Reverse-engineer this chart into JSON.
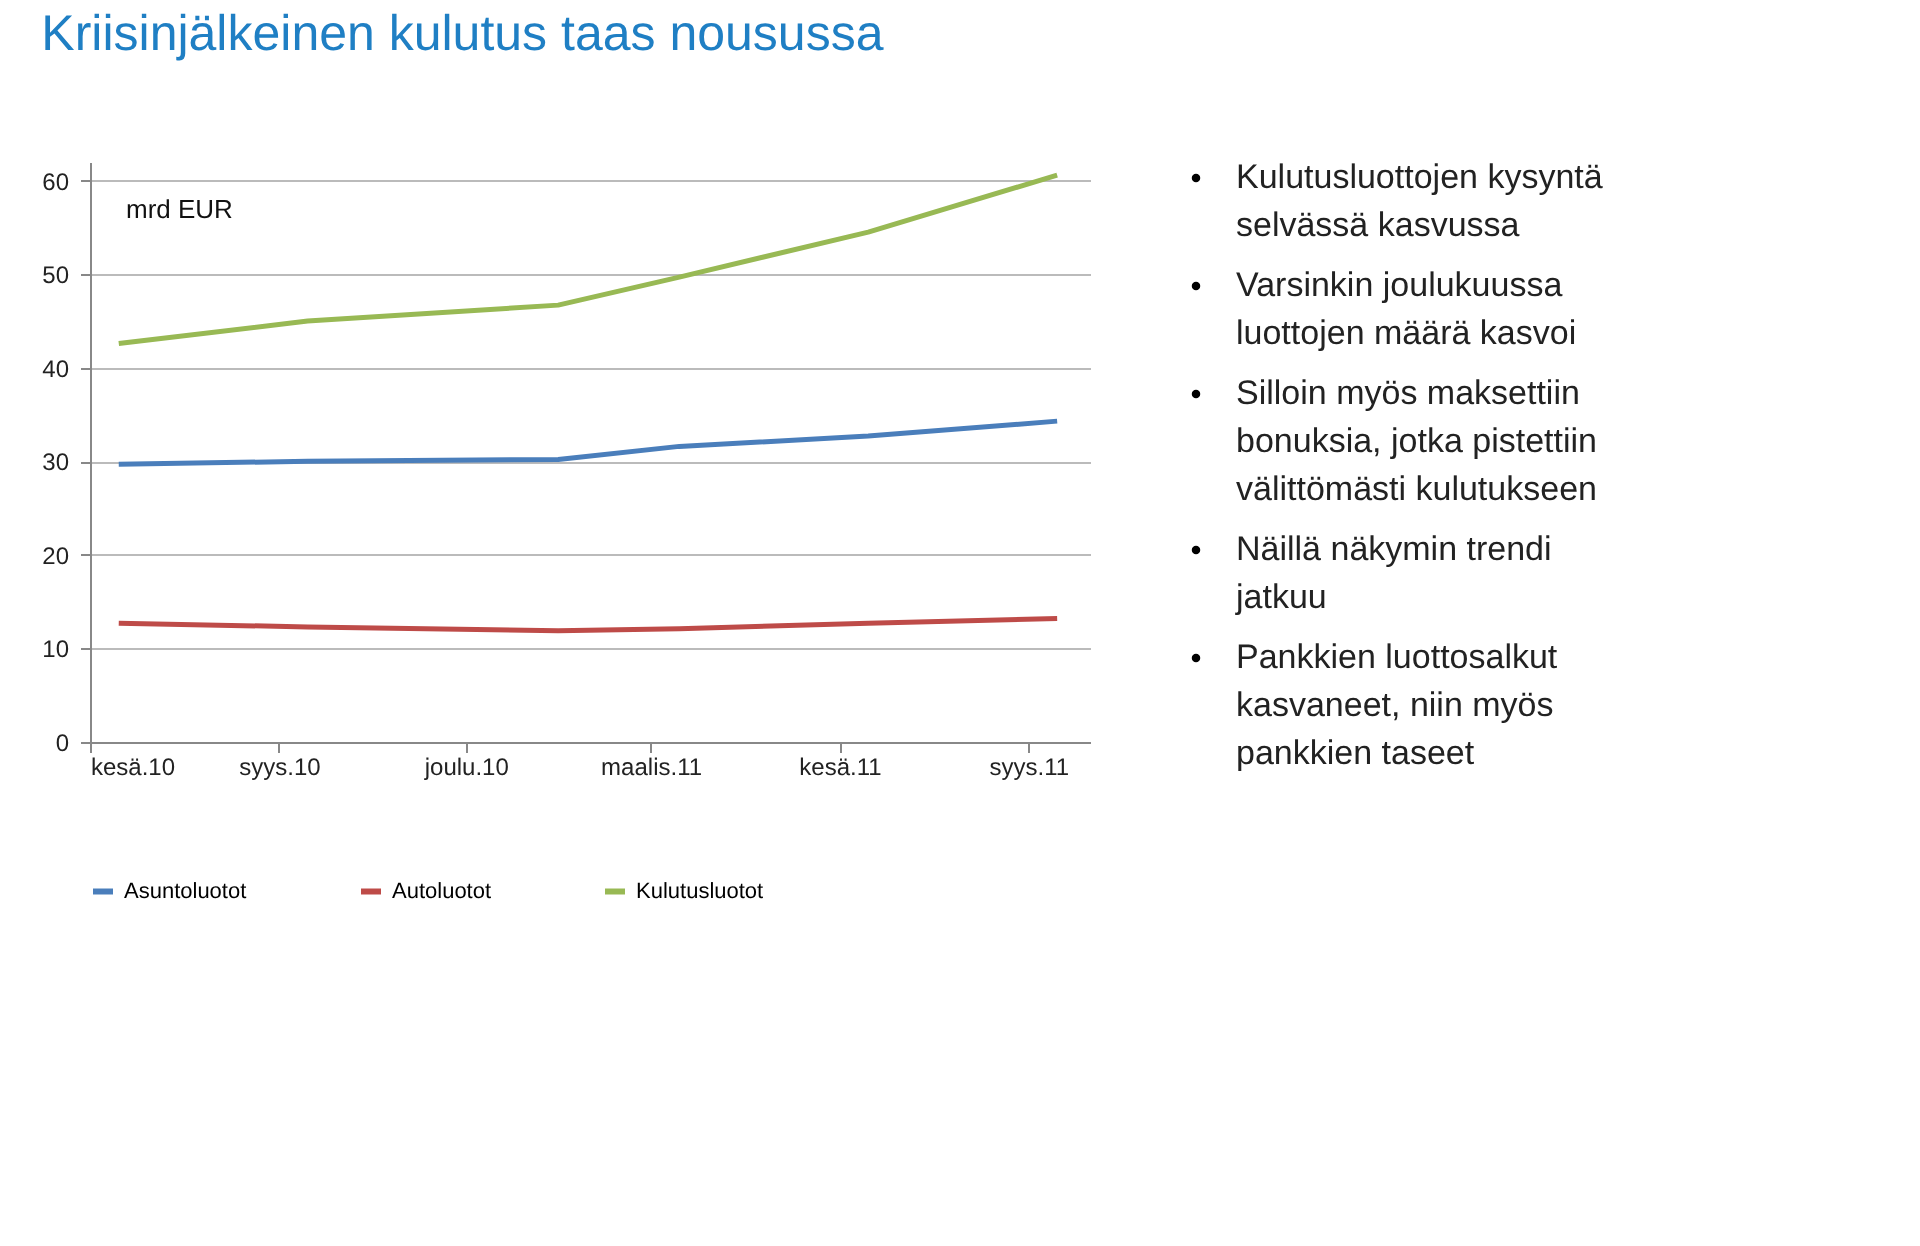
{
  "chart_data": {
    "type": "line",
    "title": "Kriisinjälkeinen kulutus taas nousussa",
    "ylabel": "mrd EUR",
    "x": [
      "2010-06-15",
      "2010-09-15",
      "2011-01-15",
      "2011-03-15",
      "2011-06-15",
      "2011-09-15"
    ],
    "series": [
      {
        "name": "Asuntoluotot",
        "color": "#4a7ebb",
        "values": [
          29.7,
          30.0,
          30.2,
          31.6,
          32.7,
          34.3
        ]
      },
      {
        "name": "Autoluotot",
        "color": "#be4b48",
        "values": [
          12.7,
          12.3,
          11.9,
          12.1,
          12.7,
          13.2
        ]
      },
      {
        "name": "Kulutusluotot",
        "color": "#98b954",
        "values": [
          42.6,
          45.0,
          46.7,
          49.7,
          54.5,
          60.6
        ]
      }
    ],
    "xlim": [
      "2010-06-01",
      "2011-10-01"
    ],
    "xticks": [
      {
        "value": "2010-06-01",
        "label": "kesä.10"
      },
      {
        "value": "2010-09-01",
        "label": "syys.10"
      },
      {
        "value": "2010-12-01",
        "label": "joulu.10"
      },
      {
        "value": "2011-03-01",
        "label": "maalis.11"
      },
      {
        "value": "2011-06-01",
        "label": "kesä.11"
      },
      {
        "value": "2011-09-01",
        "label": "syys.11"
      }
    ],
    "ylim": [
      0,
      62
    ],
    "yticks": [
      0,
      10,
      20,
      30,
      40,
      50,
      60
    ],
    "grid": "y",
    "legend": "bottom",
    "marker": "none",
    "line_style": "solid",
    "annotations": [
      "Kulutusluottojen kysyntä\nselvässä kasvussa",
      "Varsinkin joulukuussa\nluottojen määrä kasvoi",
      "Silloin myös maksettiin\nbonuksia, jotka pistettiin\nvälittömästi kulutukseen",
      "Näillä näkymin trendi\njatkuu",
      "Pankkien luottosalkut\nkasvaneet, niin myös\npankkien taseet"
    ]
  }
}
